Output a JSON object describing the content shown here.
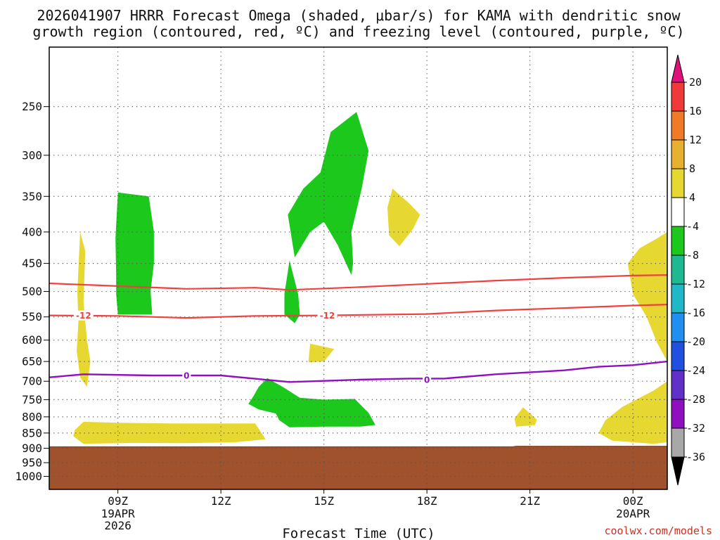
{
  "title_line1": "2026041907 HRRR Forecast Omega (shaded, μbar/s) for KAMA with dendritic snow",
  "title_line2": "growth region (contoured, red, ºC) and freezing level (contoured, purple, ºC)",
  "credit": "coolwx.com/models",
  "chart_data": {
    "type": "time-height cross section",
    "title": "2026041907 HRRR Forecast Omega (shaded, μbar/s) for KAMA with dendritic snow growth region (contoured, red, ºC) and freezing level (contoured, purple, ºC)",
    "xlabel": "Forecast Time (UTC)",
    "x_range_utc": [
      "2026-04-19 07Z",
      "2026-04-20 01Z"
    ],
    "x_ticks": [
      {
        "hour": 9,
        "label": "09Z",
        "sub1": "19APR",
        "sub2": "2026"
      },
      {
        "hour": 12,
        "label": "12Z",
        "sub1": "",
        "sub2": ""
      },
      {
        "hour": 15,
        "label": "15Z",
        "sub1": "",
        "sub2": ""
      },
      {
        "hour": 18,
        "label": "18Z",
        "sub1": "",
        "sub2": ""
      },
      {
        "hour": 21,
        "label": "21Z",
        "sub1": "",
        "sub2": ""
      },
      {
        "hour": 24,
        "label": "00Z",
        "sub1": "20APR",
        "sub2": ""
      }
    ],
    "ylabel": "",
    "y_axis": "pressure (hPa), log scale, inverted",
    "y_range_hpa": [
      1050,
      200
    ],
    "y_ticks": [
      250,
      300,
      350,
      400,
      450,
      500,
      550,
      600,
      650,
      700,
      750,
      800,
      850,
      900,
      950,
      1000
    ],
    "grid": true,
    "colorbar": {
      "units": "μbar/s",
      "labels": [
        "20",
        "16",
        "12",
        "8",
        "4",
        "-4",
        "-8",
        "-12",
        "-16",
        "-20",
        "-24",
        "-28",
        "-32",
        "-36"
      ],
      "colors": [
        "#e0107a",
        "#f03a3a",
        "#f07a28",
        "#e8b030",
        "#e6d830",
        "#ffffff",
        "#1cc81c",
        "#20b890",
        "#20b8c8",
        "#2090f0",
        "#2050e0",
        "#6030c8",
        "#9010c0",
        "#a8a8a8",
        "#000000"
      ]
    },
    "omega_shading": {
      "positive_4_to_8_color": "#e6d830",
      "negative_minus4_to_minus8_color": "#1cc81c",
      "ground_color": "#a0522d",
      "regions": [
        {
          "sign": "positive",
          "points": [
            [
              7.9,
              400
            ],
            [
              8.05,
              430
            ],
            [
              8.0,
              520
            ],
            [
              8.1,
              600
            ],
            [
              8.2,
              650
            ],
            [
              8.1,
              715
            ],
            [
              7.9,
              690
            ],
            [
              7.8,
              625
            ],
            [
              7.85,
              560
            ],
            [
              7.82,
              500
            ],
            [
              7.85,
              460
            ]
          ]
        },
        {
          "sign": "negative",
          "points": [
            [
              9.0,
              345
            ],
            [
              9.9,
              350
            ],
            [
              10.05,
              400
            ],
            [
              10.05,
              450
            ],
            [
              9.95,
              500
            ],
            [
              10.0,
              545
            ],
            [
              9.0,
              545
            ],
            [
              8.95,
              505
            ],
            [
              8.95,
              470
            ],
            [
              8.93,
              410
            ]
          ]
        },
        {
          "sign": "negative",
          "points": [
            [
              15.95,
              255
            ],
            [
              16.3,
              295
            ],
            [
              16.1,
              340
            ],
            [
              15.8,
              400
            ],
            [
              15.85,
              450
            ],
            [
              15.8,
              470
            ],
            [
              15.4,
              420
            ],
            [
              15.0,
              385
            ],
            [
              14.6,
              400
            ],
            [
              14.15,
              440
            ],
            [
              13.95,
              375
            ],
            [
              14.4,
              340
            ],
            [
              14.9,
              320
            ],
            [
              15.2,
              275
            ]
          ]
        },
        {
          "sign": "negative",
          "points": [
            [
              14.0,
              445
            ],
            [
              14.25,
              505
            ],
            [
              14.3,
              545
            ],
            [
              14.15,
              563
            ],
            [
              13.85,
              545
            ],
            [
              13.85,
              505
            ]
          ]
        },
        {
          "sign": "positive",
          "points": [
            [
              17.0,
              340
            ],
            [
              17.5,
              360
            ],
            [
              17.8,
              375
            ],
            [
              17.6,
              395
            ],
            [
              17.2,
              422
            ],
            [
              16.9,
              405
            ],
            [
              16.85,
              365
            ]
          ]
        },
        {
          "sign": "positive",
          "points": [
            [
              14.6,
              608
            ],
            [
              15.3,
              620
            ],
            [
              15.0,
              650
            ],
            [
              14.55,
              652
            ]
          ]
        },
        {
          "sign": "negative",
          "points": [
            [
              13.35,
              692
            ],
            [
              13.8,
              715
            ],
            [
              14.3,
              745
            ],
            [
              15.0,
              750
            ],
            [
              15.9,
              748
            ],
            [
              16.3,
              788
            ],
            [
              16.5,
              825
            ],
            [
              16.05,
              830
            ],
            [
              15.0,
              830
            ],
            [
              14.0,
              832
            ],
            [
              13.7,
              810
            ],
            [
              13.6,
              790
            ],
            [
              13.1,
              778
            ],
            [
              12.8,
              762
            ],
            [
              12.95,
              740
            ],
            [
              13.1,
              715
            ]
          ]
        },
        {
          "sign": "positive",
          "points": [
            [
              7.75,
              840
            ],
            [
              8.0,
              815
            ],
            [
              9.0,
              818
            ],
            [
              10.5,
              820
            ],
            [
              12.0,
              820
            ],
            [
              13.0,
              820
            ],
            [
              13.3,
              870
            ],
            [
              12.4,
              880
            ],
            [
              11.0,
              883
            ],
            [
              9.5,
              882
            ],
            [
              8.0,
              885
            ],
            [
              7.7,
              860
            ]
          ]
        },
        {
          "sign": "positive",
          "points": [
            [
              20.8,
              772
            ],
            [
              21.2,
              808
            ],
            [
              21.15,
              825
            ],
            [
              20.6,
              830
            ],
            [
              20.55,
              805
            ]
          ]
        },
        {
          "sign": "positive",
          "points": [
            [
              25.0,
              400
            ],
            [
              25.0,
              650
            ],
            [
              24.7,
              605
            ],
            [
              24.4,
              550
            ],
            [
              24.0,
              505
            ],
            [
              23.85,
              450
            ],
            [
              24.2,
              425
            ],
            [
              24.7,
              410
            ]
          ]
        },
        {
          "sign": "positive",
          "points": [
            [
              25.0,
              700
            ],
            [
              25.0,
              880
            ],
            [
              24.6,
              885
            ],
            [
              23.4,
              875
            ],
            [
              23.0,
              850
            ],
            [
              23.2,
              810
            ],
            [
              23.7,
              770
            ],
            [
              24.2,
              745
            ],
            [
              24.6,
              725
            ]
          ]
        }
      ]
    },
    "dendritic_growth_contours": {
      "color": "#f04040",
      "lines": [
        {
          "label": "",
          "points": [
            [
              7,
              485
            ],
            [
              9,
              490
            ],
            [
              11,
              495
            ],
            [
              13,
              493
            ],
            [
              14,
              497
            ],
            [
              16,
              492
            ],
            [
              18,
              486
            ],
            [
              20,
              480
            ],
            [
              22,
              475
            ],
            [
              24,
              471
            ],
            [
              25,
              470
            ]
          ]
        },
        {
          "label": "-12",
          "points": [
            [
              7,
              547
            ],
            [
              9,
              548
            ],
            [
              11,
              552
            ],
            [
              13,
              548
            ],
            [
              15,
              547
            ],
            [
              18,
              544
            ],
            [
              20,
              537
            ],
            [
              22,
              532
            ],
            [
              24,
              527
            ],
            [
              25,
              525
            ]
          ]
        }
      ],
      "inline_labels": [
        {
          "text": "-12",
          "hour": 8.0,
          "p": 547
        },
        {
          "text": "-12",
          "hour": 15.1,
          "p": 547
        }
      ]
    },
    "freezing_level_contour": {
      "color": "#9010c0",
      "label": "0",
      "points": [
        [
          7,
          690
        ],
        [
          8.0,
          682
        ],
        [
          10,
          685
        ],
        [
          12,
          685
        ],
        [
          14,
          702
        ],
        [
          16,
          696
        ],
        [
          17.5,
          693
        ],
        [
          18.5,
          693
        ],
        [
          20,
          682
        ],
        [
          22,
          672
        ],
        [
          23,
          663
        ],
        [
          24,
          659
        ],
        [
          25,
          650
        ]
      ],
      "inline_labels": [
        {
          "text": "0",
          "hour": 11.0,
          "p": 685
        },
        {
          "text": "0",
          "hour": 18.0,
          "p": 696
        }
      ]
    },
    "surface_pressure_hpa": [
      [
        7,
        895
      ],
      [
        20.5,
        895
      ],
      [
        20.6,
        893
      ],
      [
        25,
        893
      ]
    ]
  }
}
